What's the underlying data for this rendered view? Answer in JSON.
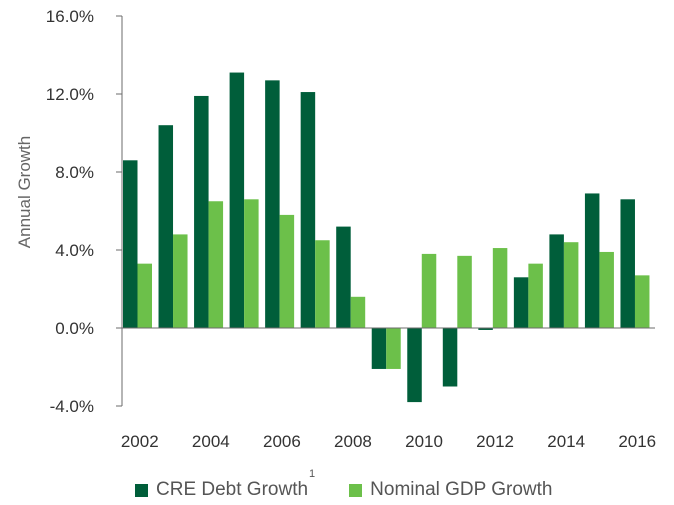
{
  "chart_data": {
    "type": "bar",
    "title": "",
    "xlabel": "",
    "ylabel": "Annual Growth",
    "ylim": [
      -4.0,
      16.0
    ],
    "yticks": [
      -4.0,
      0.0,
      4.0,
      8.0,
      12.0,
      16.0
    ],
    "ytick_labels": [
      "-4.0%",
      "0.0%",
      "4.0%",
      "8.0%",
      "12.0%",
      "16.0%"
    ],
    "categories": [
      "2002",
      "2003",
      "2004",
      "2005",
      "2006",
      "2007",
      "2008",
      "2009",
      "2010",
      "2011",
      "2012",
      "2013",
      "2014",
      "2015",
      "2016"
    ],
    "xtick_labels": [
      "2002",
      "",
      "2004",
      "",
      "2006",
      "",
      "2008",
      "",
      "2010",
      "",
      "2012",
      "",
      "2014",
      "",
      "2016"
    ],
    "series": [
      {
        "name": "CRE Debt Growth",
        "footnote": "1",
        "color": "#005e3a",
        "values": [
          8.6,
          10.4,
          11.9,
          13.1,
          12.7,
          12.1,
          5.2,
          -2.1,
          -3.8,
          -3.0,
          -0.1,
          2.6,
          4.8,
          6.9,
          6.6
        ]
      },
      {
        "name": "Nominal GDP Growth",
        "color": "#6cc04a",
        "values": [
          3.3,
          4.8,
          6.5,
          6.6,
          5.8,
          4.5,
          1.6,
          -2.1,
          3.8,
          3.7,
          4.1,
          3.3,
          4.4,
          3.9,
          2.7
        ]
      }
    ],
    "legend_position": "bottom",
    "grid": false
  }
}
